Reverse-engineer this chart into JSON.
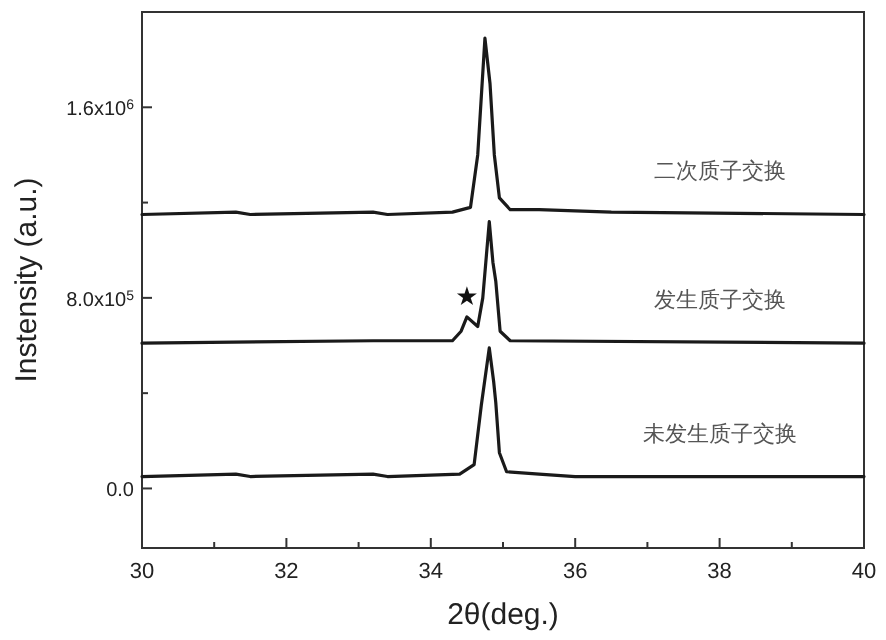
{
  "chart_data": {
    "type": "line",
    "xlabel": "2θ(deg.)",
    "ylabel": "Instensity (a.u.)",
    "xlim": [
      30,
      40
    ],
    "ylim": [
      -250000,
      2000000
    ],
    "xticks": [
      30,
      {
        "value": 31,
        "label": null
      },
      32,
      {
        "value": 33,
        "label": null
      },
      34,
      {
        "value": 35,
        "label": null
      },
      36,
      {
        "value": 37,
        "label": null
      },
      38,
      {
        "value": 39,
        "label": null
      },
      40
    ],
    "yticks": [
      {
        "value": 0,
        "label": "0.0"
      },
      {
        "value": 400000,
        "label": null
      },
      {
        "value": 800000,
        "label": "8.0x10$^{5}$"
      },
      {
        "value": 1200000,
        "label": null
      },
      {
        "value": 1600000,
        "label": "1.6x10$^{6}$"
      }
    ],
    "line_style": "solid",
    "annotations": [
      {
        "text": "★",
        "x": 34.5,
        "y": 720000
      }
    ],
    "series": [
      {
        "name": "二次质子交换",
        "color": "#1a1a1a",
        "x": [
          30,
          31.3,
          31.5,
          33.2,
          33.4,
          34.3,
          34.55,
          34.65,
          34.75,
          34.82,
          34.88,
          34.95,
          35.1,
          35.5,
          36.5,
          40
        ],
        "values": [
          1150000,
          1160000,
          1150000,
          1160000,
          1150000,
          1160000,
          1180000,
          1400000,
          1890000,
          1700000,
          1400000,
          1220000,
          1170000,
          1170000,
          1160000,
          1150000
        ]
      },
      {
        "name": "发生质子交换",
        "color": "#1a1a1a",
        "x": [
          30,
          33.2,
          34.3,
          34.42,
          34.5,
          34.65,
          34.72,
          34.81,
          34.86,
          34.9,
          34.96,
          35.1,
          40
        ],
        "values": [
          610000,
          620000,
          620000,
          660000,
          720000,
          680000,
          800000,
          1120000,
          950000,
          870000,
          660000,
          620000,
          610000
        ]
      },
      {
        "name": "未发生质子交换",
        "color": "#1a1a1a",
        "x": [
          30,
          31.3,
          31.5,
          33.2,
          33.4,
          34.4,
          34.6,
          34.7,
          34.81,
          34.87,
          34.9,
          34.95,
          35.05,
          35.5,
          36,
          40
        ],
        "values": [
          50000,
          60000,
          50000,
          60000,
          50000,
          60000,
          100000,
          350000,
          590000,
          450000,
          360000,
          150000,
          70000,
          60000,
          50000,
          50000
        ]
      }
    ]
  }
}
